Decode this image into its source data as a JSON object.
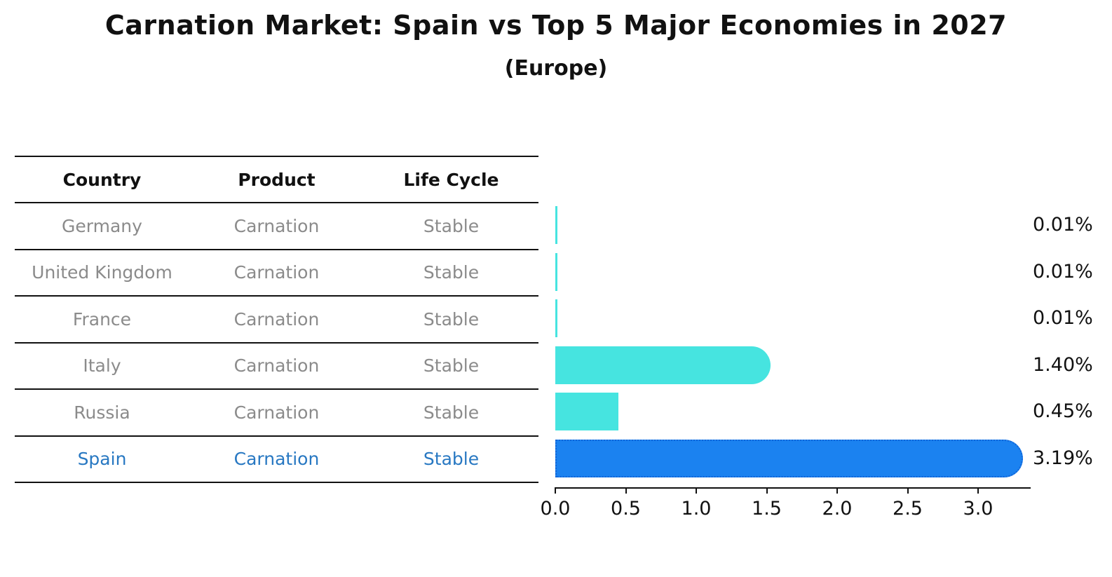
{
  "header": {
    "title": "Carnation Market: Spain vs Top 5 Major Economies in 2027",
    "subtitle": "(Europe)"
  },
  "table": {
    "headers": [
      "Country",
      "Product",
      "Life Cycle"
    ],
    "rows": [
      {
        "country": "Germany",
        "product": "Carnation",
        "life_cycle": "Stable",
        "highlight": false
      },
      {
        "country": "United Kingdom",
        "product": "Carnation",
        "life_cycle": "Stable",
        "highlight": false
      },
      {
        "country": "France",
        "product": "Carnation",
        "life_cycle": "Stable",
        "highlight": false
      },
      {
        "country": "Italy",
        "product": "Carnation",
        "life_cycle": "Stable",
        "highlight": false
      },
      {
        "country": "Russia",
        "product": "Carnation",
        "life_cycle": "Stable",
        "highlight": false
      },
      {
        "country": "Spain",
        "product": "Carnation",
        "life_cycle": "Stable",
        "highlight": true
      }
    ]
  },
  "chart_data": {
    "type": "bar",
    "orientation": "horizontal",
    "title": "Carnation Market: Spain vs Top 5 Major Economies in 2027 (Europe)",
    "categories": [
      "Germany",
      "United Kingdom",
      "France",
      "Italy",
      "Russia",
      "Spain"
    ],
    "values": [
      0.01,
      0.01,
      0.01,
      1.4,
      0.45,
      3.19
    ],
    "value_labels": [
      "0.01%",
      "0.01%",
      "0.01%",
      "1.40%",
      "0.45%",
      "3.19%"
    ],
    "bars": [
      {
        "cap": "butt",
        "highlight": false
      },
      {
        "cap": "butt",
        "highlight": false
      },
      {
        "cap": "butt",
        "highlight": false
      },
      {
        "cap": "round",
        "highlight": false
      },
      {
        "cap": "butt",
        "highlight": false
      },
      {
        "cap": "round",
        "highlight": true
      }
    ],
    "x_ticks": [
      0.0,
      0.5,
      1.0,
      1.5,
      2.0,
      2.5,
      3.0
    ],
    "x_tick_labels": [
      "0.0",
      "0.5",
      "1.0",
      "1.5",
      "2.0",
      "2.5",
      "3.0"
    ],
    "xlim": [
      0,
      3.37
    ],
    "grid": false,
    "legend": "none",
    "colors": {
      "bar_default": "#46e4e0",
      "bar_highlight": "#1b82f0",
      "bar_highlight_border": "#1064d8",
      "row_text": "#8b8b8b",
      "highlight_text": "#2878c2",
      "axis": "#111111"
    }
  }
}
